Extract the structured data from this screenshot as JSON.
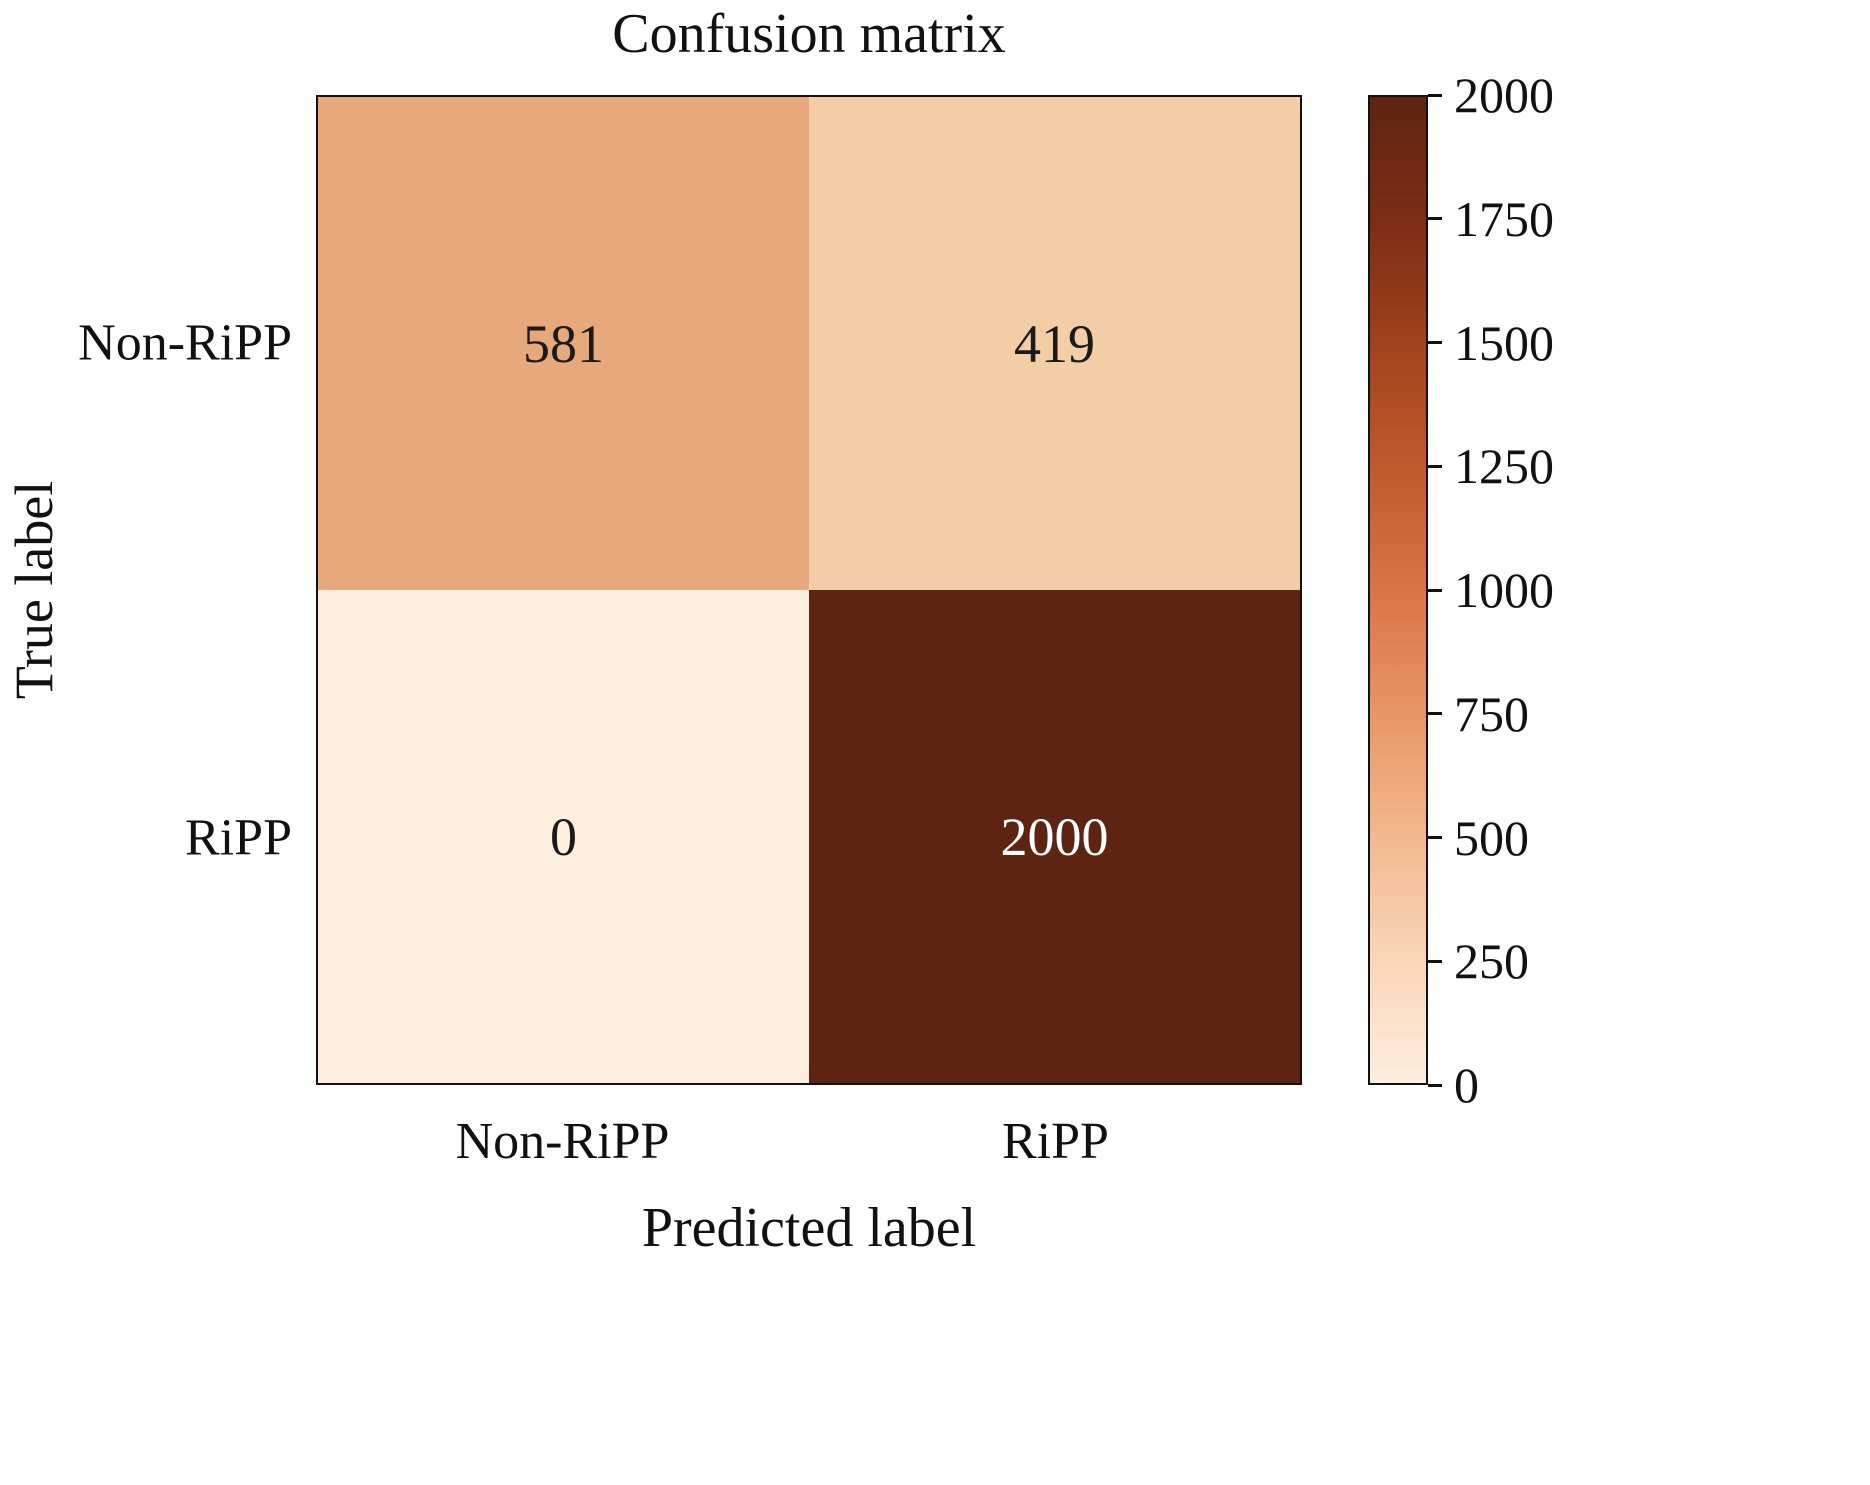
{
  "chart_data": {
    "type": "heatmap",
    "title": "Confusion matrix",
    "xlabel": "Predicted label",
    "ylabel": "True label",
    "x_categories": [
      "Non-RiPP",
      "RiPP"
    ],
    "y_categories": [
      "Non-RiPP",
      "RiPP"
    ],
    "values": [
      [
        581,
        419
      ],
      [
        0,
        2000
      ]
    ],
    "value_range": [
      0,
      2000
    ],
    "colormap": "Oranges",
    "grid": false,
    "cells": [
      {
        "row": "Non-RiPP",
        "col": "Non-RiPP",
        "value": "581",
        "bg": "#e7a87b",
        "fg": "#1a1a1a"
      },
      {
        "row": "Non-RiPP",
        "col": "RiPP",
        "value": "419",
        "bg": "#f2cda6",
        "fg": "#1a1a1a"
      },
      {
        "row": "RiPP",
        "col": "Non-RiPP",
        "value": "0",
        "bg": "#fdeede",
        "fg": "#1a1a1a"
      },
      {
        "row": "RiPP",
        "col": "RiPP",
        "value": "2000",
        "bg": "#5e2412",
        "fg": "#ffffff"
      }
    ],
    "colorbar": {
      "position": "right",
      "min": 0,
      "max": 2000,
      "ticks": [
        "2000",
        "1750",
        "1500",
        "1250",
        "1000",
        "750",
        "500",
        "250",
        "0"
      ],
      "gradient_stops": [
        "#5e2412",
        "#7c2d14",
        "#9f421d",
        "#bf5a2b",
        "#d97544",
        "#e89565",
        "#f2b88e",
        "#f9d6b8",
        "#fdeede"
      ]
    }
  }
}
